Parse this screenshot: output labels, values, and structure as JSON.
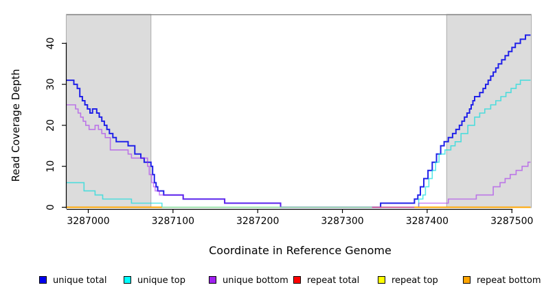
{
  "chart_data": {
    "type": "line",
    "step": "after",
    "title": "",
    "xlabel": "Coordinate in Reference Genome",
    "ylabel": "Read Coverage Depth",
    "xlim": [
      3286974,
      3287523
    ],
    "ylim": [
      0,
      47
    ],
    "x_ticks": [
      3287000,
      3287100,
      3287200,
      3287300,
      3287400,
      3287500
    ],
    "y_ticks": [
      0,
      10,
      20,
      30,
      40
    ],
    "grid": false,
    "legend_position": "bottom",
    "shaded_regions": [
      {
        "name": "left-repeat-region",
        "from": 3286974,
        "to": 3287074,
        "fill": "#DCDCDC",
        "border": "#ABABAB"
      },
      {
        "name": "right-repeat-region",
        "from": 3287423,
        "to": 3287523,
        "fill": "#DCDCDC",
        "border": "#ABABAB"
      }
    ],
    "top_border_color": "#7D7D7D",
    "series": [
      {
        "name": "unique total",
        "color": "#2020E8",
        "width": 2,
        "points": [
          [
            3286974,
            31
          ],
          [
            3286983,
            30
          ],
          [
            3286987,
            29
          ],
          [
            3286990,
            27
          ],
          [
            3286993,
            26
          ],
          [
            3286996,
            25
          ],
          [
            3286999,
            24
          ],
          [
            3287002,
            23
          ],
          [
            3287005,
            24
          ],
          [
            3287010,
            23
          ],
          [
            3287013,
            22
          ],
          [
            3287016,
            21
          ],
          [
            3287019,
            20
          ],
          [
            3287022,
            19
          ],
          [
            3287025,
            18
          ],
          [
            3287029,
            17
          ],
          [
            3287033,
            16
          ],
          [
            3287047,
            15
          ],
          [
            3287055,
            13
          ],
          [
            3287062,
            12
          ],
          [
            3287066,
            11
          ],
          [
            3287074,
            10
          ],
          [
            3287076,
            8
          ],
          [
            3287078,
            6
          ],
          [
            3287080,
            5
          ],
          [
            3287082,
            4
          ],
          [
            3287089,
            3
          ],
          [
            3287112,
            2
          ],
          [
            3287161,
            1
          ],
          [
            3287227,
            0
          ],
          [
            3287345,
            1
          ],
          [
            3287385,
            2
          ],
          [
            3287389,
            3
          ],
          [
            3287392,
            5
          ],
          [
            3287396,
            7
          ],
          [
            3287401,
            9
          ],
          [
            3287406,
            11
          ],
          [
            3287411,
            13
          ],
          [
            3287416,
            15
          ],
          [
            3287420,
            16
          ],
          [
            3287425,
            17
          ],
          [
            3287430,
            18
          ],
          [
            3287434,
            19
          ],
          [
            3287438,
            20
          ],
          [
            3287441,
            21
          ],
          [
            3287444,
            22
          ],
          [
            3287447,
            23
          ],
          [
            3287450,
            24
          ],
          [
            3287452,
            25
          ],
          [
            3287454,
            26
          ],
          [
            3287456,
            27
          ],
          [
            3287462,
            28
          ],
          [
            3287466,
            29
          ],
          [
            3287469,
            30
          ],
          [
            3287472,
            31
          ],
          [
            3287475,
            32
          ],
          [
            3287478,
            33
          ],
          [
            3287481,
            34
          ],
          [
            3287484,
            35
          ],
          [
            3287488,
            36
          ],
          [
            3287492,
            37
          ],
          [
            3287496,
            38
          ],
          [
            3287500,
            39
          ],
          [
            3287504,
            40
          ],
          [
            3287510,
            41
          ],
          [
            3287516,
            42
          ],
          [
            3287522,
            42
          ]
        ]
      },
      {
        "name": "unique top",
        "color": "rgba(0,220,220,0.65)",
        "width": 1.6,
        "points": [
          [
            3286974,
            6
          ],
          [
            3286995,
            4
          ],
          [
            3287008,
            3
          ],
          [
            3287017,
            2
          ],
          [
            3287051,
            1
          ],
          [
            3287087,
            0
          ],
          [
            3287390,
            2
          ],
          [
            3287395,
            3
          ],
          [
            3287398,
            5
          ],
          [
            3287402,
            7
          ],
          [
            3287406,
            9
          ],
          [
            3287410,
            11
          ],
          [
            3287414,
            13
          ],
          [
            3287421,
            14
          ],
          [
            3287428,
            15
          ],
          [
            3287433,
            16
          ],
          [
            3287440,
            18
          ],
          [
            3287448,
            20
          ],
          [
            3287456,
            22
          ],
          [
            3287462,
            23
          ],
          [
            3287468,
            24
          ],
          [
            3287475,
            25
          ],
          [
            3287481,
            26
          ],
          [
            3287487,
            27
          ],
          [
            3287493,
            28
          ],
          [
            3287499,
            29
          ],
          [
            3287505,
            30
          ],
          [
            3287510,
            31
          ],
          [
            3287522,
            31
          ]
        ]
      },
      {
        "name": "unique bottom",
        "color": "rgba(160,32,240,0.55)",
        "width": 1.6,
        "points": [
          [
            3286974,
            25
          ],
          [
            3286985,
            24
          ],
          [
            3286988,
            23
          ],
          [
            3286991,
            22
          ],
          [
            3286994,
            21
          ],
          [
            3286997,
            20
          ],
          [
            3287001,
            19
          ],
          [
            3287008,
            20
          ],
          [
            3287012,
            19
          ],
          [
            3287016,
            18
          ],
          [
            3287020,
            17
          ],
          [
            3287026,
            14
          ],
          [
            3287047,
            13
          ],
          [
            3287051,
            12
          ],
          [
            3287070,
            10
          ],
          [
            3287072,
            8
          ],
          [
            3287075,
            6
          ],
          [
            3287077,
            5
          ],
          [
            3287079,
            4
          ],
          [
            3287084,
            3
          ],
          [
            3287112,
            2
          ],
          [
            3287161,
            1
          ],
          [
            3287227,
            0
          ],
          [
            3287390,
            1
          ],
          [
            3287425,
            2
          ],
          [
            3287458,
            3
          ],
          [
            3287478,
            5
          ],
          [
            3287486,
            6
          ],
          [
            3287492,
            7
          ],
          [
            3287498,
            8
          ],
          [
            3287505,
            9
          ],
          [
            3287512,
            10
          ],
          [
            3287519,
            11
          ],
          [
            3287522,
            11
          ]
        ]
      },
      {
        "name": "repeat total",
        "color": "#FF0000",
        "width": 1.5,
        "rendered_via_zero_line": true,
        "points": [
          [
            3286974,
            0
          ],
          [
            3287522,
            0
          ]
        ]
      },
      {
        "name": "repeat top",
        "color": "#FFFF00",
        "width": 1.5,
        "rendered_via_zero_line": true,
        "points": [
          [
            3286974,
            0
          ],
          [
            3287522,
            0
          ]
        ]
      },
      {
        "name": "repeat bottom",
        "color": "#FFA500",
        "width": 1.8,
        "rendered_via_zero_line": true,
        "points": [
          [
            3286974,
            0
          ],
          [
            3287522,
            0
          ]
        ]
      }
    ],
    "zero_line_segments": [
      {
        "from": 3286974,
        "to": 3287087,
        "color": "#FFA500",
        "width": 2
      },
      {
        "from": 3287087,
        "to": 3287335,
        "color": "#98DE98",
        "width": 1.6
      },
      {
        "from": 3287335,
        "to": 3287385,
        "color": "#D6447F",
        "width": 1.6
      },
      {
        "from": 3287385,
        "to": 3287522,
        "color": "#FFA500",
        "width": 2
      }
    ]
  },
  "legend": {
    "items": [
      {
        "label": "unique total",
        "color": "#0000EE"
      },
      {
        "label": "unique top",
        "color": "#00FFFF"
      },
      {
        "label": "unique bottom",
        "color": "#A020F0"
      },
      {
        "label": "repeat total",
        "color": "#FF0000"
      },
      {
        "label": "repeat top",
        "color": "#FFFF00"
      },
      {
        "label": "repeat bottom",
        "color": "#FFA500"
      }
    ]
  }
}
